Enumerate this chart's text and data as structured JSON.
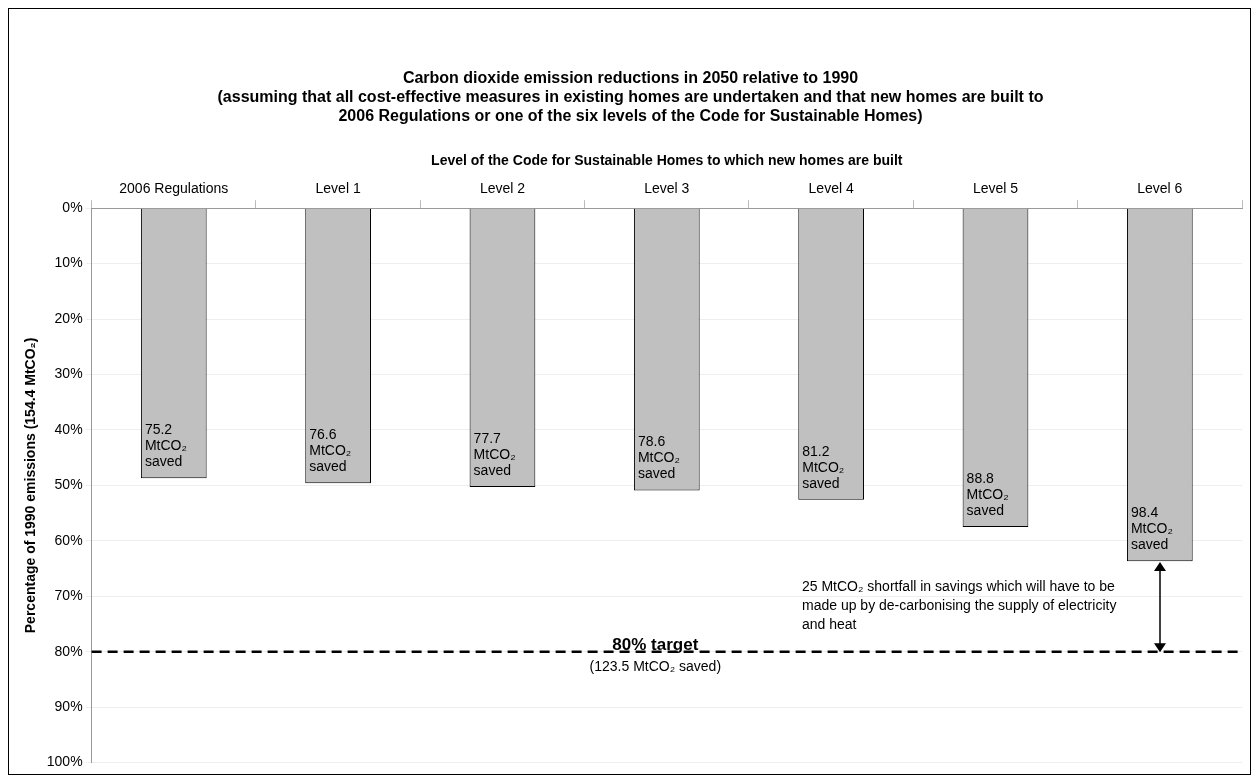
{
  "chart_data": {
    "type": "bar",
    "title": "Carbon dioxide emission reductions in 2050 relative to 1990",
    "subtitle": "(assuming that all cost-effective measures in existing homes are undertaken and that new homes are built to 2006 Regulations or one of the six levels of the Code for Sustainable Homes)",
    "xlabel": "Level of the Code for Sustainable Homes to which new homes are built",
    "ylabel": "Percentage of 1990 emissions (154.4 MtCO₂)",
    "categories": [
      "2006 Regulations",
      "Level 1",
      "Level 2",
      "Level 3",
      "Level 4",
      "Level 5",
      "Level 6"
    ],
    "values": [
      48.7,
      49.6,
      50.3,
      50.9,
      52.6,
      57.5,
      63.7
    ],
    "color": "#c0c0c0",
    "ylim": [
      100,
      0
    ],
    "yticks": [
      {
        "value": 0,
        "label": "0%"
      },
      {
        "value": 10,
        "label": "10%"
      },
      {
        "value": 20,
        "label": "20%"
      },
      {
        "value": 30,
        "label": "30%"
      },
      {
        "value": 40,
        "label": "40%"
      },
      {
        "value": 50,
        "label": "50%"
      },
      {
        "value": 60,
        "label": "60%"
      },
      {
        "value": 70,
        "label": "70%"
      },
      {
        "value": 80,
        "label": "80%"
      },
      {
        "value": 90,
        "label": "90%"
      },
      {
        "value": 100,
        "label": "100%"
      }
    ],
    "grid": "y",
    "ref_lines": [
      {
        "axis": "y",
        "value": 80,
        "label": "80% target",
        "color": "#000000",
        "line_style": "dashed"
      }
    ],
    "annotations": [
      {
        "text": "(123.5 MtCO₂ saved)",
        "y": 80
      },
      "25 MtCO₂ shortfall in savings which will have to be made up by de-carbonising the supply of electricity and heat",
      {
        "text": "75.2 MtCO₂ saved",
        "x": "2006 Regulations",
        "y": 48.7
      },
      {
        "text": "76.6 MtCO₂ saved",
        "x": "Level 1",
        "y": 49.6
      },
      {
        "text": "77.7 MtCO₂ saved",
        "x": "Level 2",
        "y": 50.3
      },
      {
        "text": "78.6 MtCO₂ saved",
        "x": "Level 3",
        "y": 50.9
      },
      {
        "text": "81.2 MtCO₂ saved",
        "x": "Level 4",
        "y": 52.6
      },
      {
        "text": "88.8 MtCO₂ saved",
        "x": "Level 5",
        "y": 57.5
      },
      {
        "text": "98.4 MtCO₂ saved",
        "x": "Level 6",
        "y": 63.7
      }
    ]
  }
}
